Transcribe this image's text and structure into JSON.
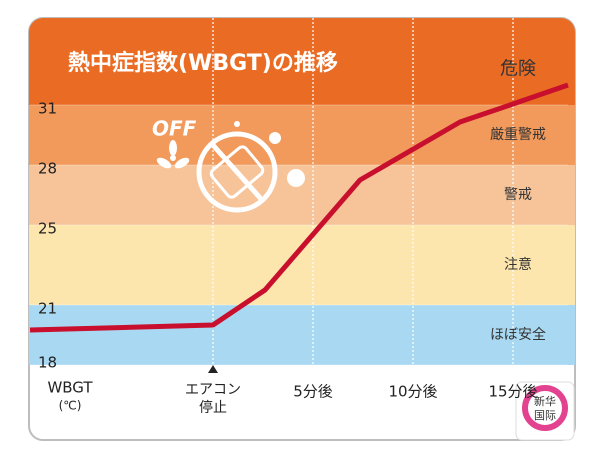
{
  "chart_data": {
    "type": "line",
    "title": "熱中症指数(WBGT)の推移",
    "x_axis_label": [
      "WBGT",
      "(℃)"
    ],
    "icon_label": "OFF",
    "x": [
      -9.15,
      0,
      2.6,
      7.35,
      12.35,
      14.85,
      17.75
    ],
    "series": [
      {
        "name": "WBGT",
        "color": "#c8102e",
        "values": [
          19.75,
          20,
          21.75,
          27.25,
          30.15,
          31,
          32
        ]
      }
    ],
    "xlim": [
      -9.15,
      17.75
    ],
    "ylim": [
      18,
      35.35
    ],
    "yticks": [
      18,
      21,
      25,
      28,
      31
    ],
    "xticks": [
      {
        "value": 0,
        "label": [
          "エアコン",
          "停止"
        ]
      },
      {
        "value": 5,
        "label": "5分後"
      },
      {
        "value": 10,
        "label": "10分後"
      },
      {
        "value": 15,
        "label": "15分後"
      }
    ],
    "bands": [
      {
        "label": "ほぼ安全",
        "from": 18,
        "color": "#a9d9f2"
      },
      {
        "label": "注意",
        "from": 21,
        "color": "#fde6ad"
      },
      {
        "label": "警戒",
        "from": 25,
        "color": "#f7c49a"
      },
      {
        "label": "厳重警戒",
        "from": 28,
        "color": "#f19a5c"
      },
      {
        "label": "危険",
        "from": 31,
        "color": "#ea6c24"
      }
    ],
    "grid": true,
    "watermark": [
      "新华",
      "国际"
    ]
  }
}
